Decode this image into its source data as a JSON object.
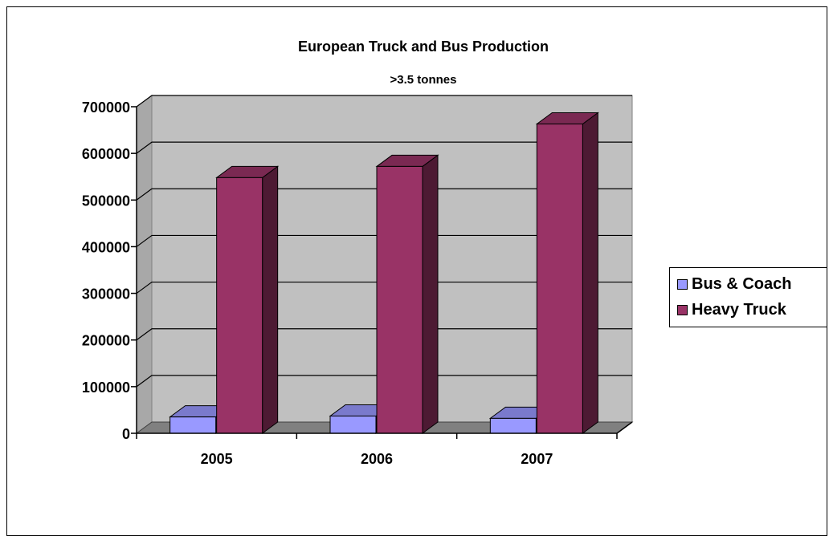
{
  "chart_data": {
    "type": "bar",
    "title": "European Truck and Bus Production",
    "subtitle": ">3.5 tonnes",
    "categories": [
      "2005",
      "2006",
      "2007"
    ],
    "series": [
      {
        "name": "Bus & Coach",
        "values": [
          35000,
          37000,
          32000
        ],
        "color": "#9999FF"
      },
      {
        "name": "Heavy Truck",
        "values": [
          548000,
          572000,
          663000
        ],
        "color": "#993366"
      }
    ],
    "y_ticks": [
      "0",
      "100000",
      "200000",
      "300000",
      "400000",
      "500000",
      "600000",
      "700000"
    ],
    "ylim": [
      0,
      700000
    ],
    "grid": true,
    "three_d": true,
    "legend_position": "right",
    "plot_background": "#C0C0C0"
  }
}
